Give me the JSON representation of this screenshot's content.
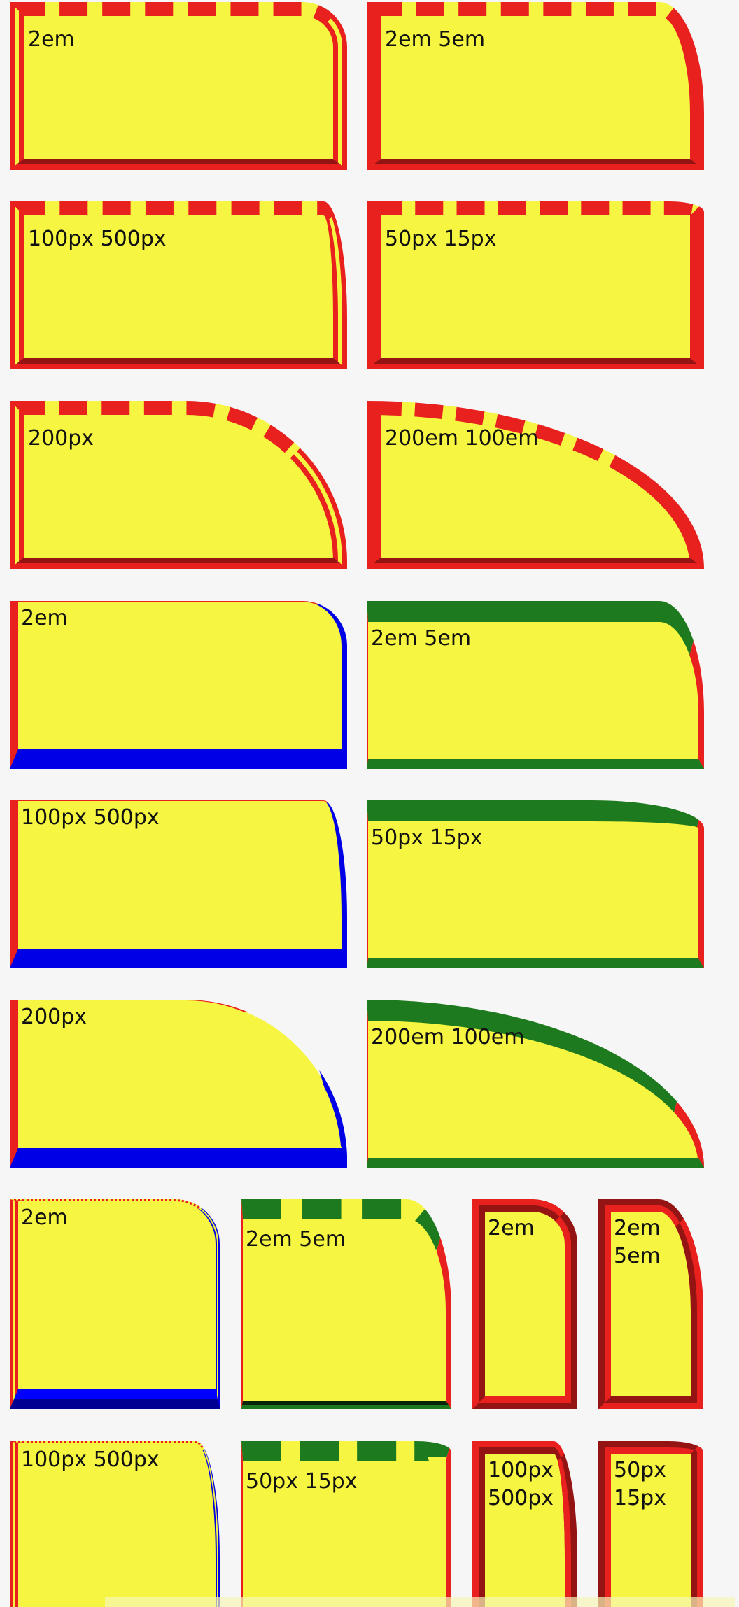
{
  "colors": {
    "background": "#f6f6f6",
    "fill": "#f5f542",
    "red": "#e8201e",
    "blue": "#0000e6",
    "green": "#1e7a1e"
  },
  "boxes": [
    {
      "label": "2em"
    },
    {
      "label": "2em 5em"
    },
    {
      "label": "100px 500px"
    },
    {
      "label": "50px 15px"
    },
    {
      "label": "200px"
    },
    {
      "label": "200em 100em"
    },
    {
      "label": "2em"
    },
    {
      "label": "2em 5em"
    },
    {
      "label": "100px 500px"
    },
    {
      "label": "50px 15px"
    },
    {
      "label": "200px"
    },
    {
      "label": "200em 100em"
    },
    {
      "label": "2em"
    },
    {
      "label": "2em 5em"
    },
    {
      "label": "2em"
    },
    {
      "label": "2em\n5em"
    },
    {
      "label": "100px 500px"
    },
    {
      "label": "50px 15px"
    },
    {
      "label": "100px\n500px"
    },
    {
      "label": "50px\n15px"
    }
  ]
}
